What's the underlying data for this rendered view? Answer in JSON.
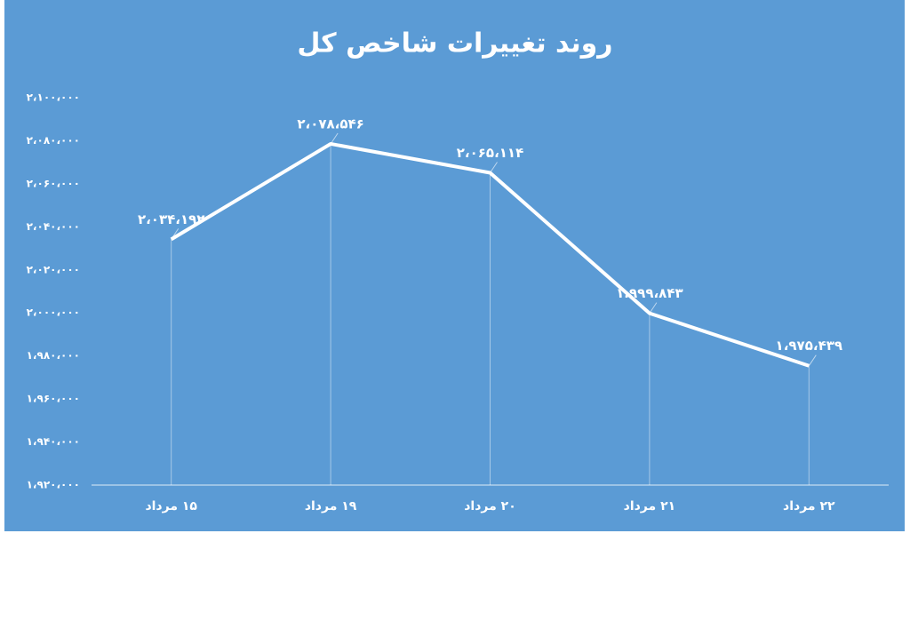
{
  "chart_data": {
    "type": "line",
    "title": "روند تغییرات شاخص کل",
    "categories": [
      "۱۵ مرداد",
      "۱۹ مرداد",
      "۲۰ مرداد",
      "۲۱ مرداد",
      "۲۲ مرداد"
    ],
    "values": [
      2034192,
      2078546,
      2065114,
      1999843,
      1975439
    ],
    "value_labels": [
      "۲،۰۳۴،۱۹۲",
      "۲،۰۷۸،۵۴۶",
      "۲،۰۶۵،۱۱۴",
      "۱،۹۹۹،۸۴۳",
      "۱،۹۷۵،۴۳۹"
    ],
    "color": "#ffffff",
    "ylim": [
      1920000,
      2100000
    ],
    "yticks": [
      {
        "value": 1920000,
        "label": "۱،۹۲۰،۰۰۰"
      },
      {
        "value": 1940000,
        "label": "۱،۹۴۰،۰۰۰"
      },
      {
        "value": 1960000,
        "label": "۱،۹۶۰،۰۰۰"
      },
      {
        "value": 1980000,
        "label": "۱،۹۸۰،۰۰۰"
      },
      {
        "value": 2000000,
        "label": "۲،۰۰۰،۰۰۰"
      },
      {
        "value": 2020000,
        "label": "۲،۰۲۰،۰۰۰"
      },
      {
        "value": 2040000,
        "label": "۲،۰۴۰،۰۰۰"
      },
      {
        "value": 2060000,
        "label": "۲،۰۶۰،۰۰۰"
      },
      {
        "value": 2080000,
        "label": "۲،۰۸۰،۰۰۰"
      },
      {
        "value": 2100000,
        "label": "۲،۱۰۰،۰۰۰"
      }
    ],
    "grid": false
  }
}
